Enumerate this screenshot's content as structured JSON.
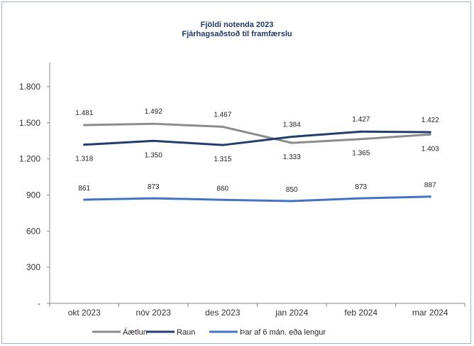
{
  "chart_data": {
    "type": "line",
    "title": "Fjöldi notenda 2023",
    "subtitle": "Fjárhagsaðstoð til framfærslu",
    "categories": [
      "okt 2023",
      "nóv 2023",
      "des 2023",
      "jan 2024",
      "feb 2024",
      "mar 2024"
    ],
    "ylim": [
      0,
      1800
    ],
    "yticks": [
      0,
      300,
      600,
      900,
      1200,
      1500,
      1800
    ],
    "ytick_labels": [
      "-",
      "300",
      "600",
      "900",
      "1.200",
      "1.500",
      "1.800"
    ],
    "series": [
      {
        "name": "Áætlun",
        "color": "#8c8c8c",
        "values": [
          1481,
          1492,
          1467,
          1333,
          1365,
          1403
        ],
        "labels": [
          "1.481",
          "1.492",
          "1.467",
          "1.333",
          "1.365",
          "1.403"
        ]
      },
      {
        "name": "Raun",
        "color": "#1f3f6e",
        "values": [
          1318,
          1350,
          1315,
          1384,
          1427,
          1422
        ],
        "labels": [
          "1.318",
          "1.350",
          "1.315",
          "1.384",
          "1.427",
          "1.422"
        ]
      },
      {
        "name": "Þar af 6 mán. eða lengur",
        "color": "#4472c4",
        "values": [
          861,
          873,
          860,
          850,
          873,
          887
        ],
        "labels": [
          "861",
          "873",
          "860",
          "850",
          "873",
          "887"
        ]
      }
    ],
    "grid": false,
    "legend_position": "bottom"
  }
}
